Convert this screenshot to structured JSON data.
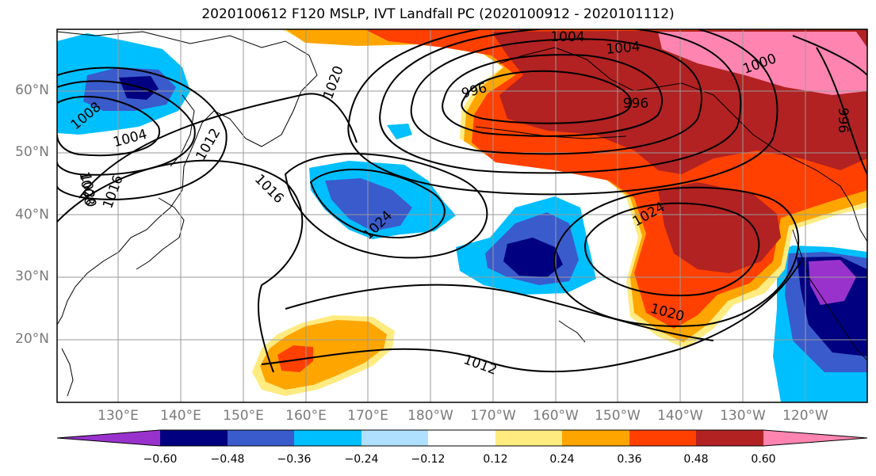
{
  "title": "2020100612 F120 MSLP, IVT Landfall PC (2020100912 - 2020101112)",
  "lat_labels": [
    "60°N",
    "50°N",
    "40°N",
    "30°N",
    "20°N"
  ],
  "lon_labels": [
    "130°E",
    "140°E",
    "150°E",
    "160°E",
    "170°E",
    "180°W",
    "170°W",
    "160°W",
    "150°W",
    "140°W",
    "130°W",
    "120°W"
  ],
  "colorbar": {
    "ticks": [
      "−0.60",
      "−0.48",
      "−0.36",
      "−0.24",
      "−0.12",
      "0.12",
      "0.24",
      "0.36",
      "0.48",
      "0.60"
    ],
    "colors": [
      "#9932cc",
      "#000080",
      "#3a5bcc",
      "#00bfff",
      "#b0e0ff",
      "#ffffff",
      "#ffeb80",
      "#ffa500",
      "#ff4000",
      "#b22222",
      "#ff85b0"
    ]
  },
  "contour_labels": [
    "1008",
    "1004",
    "1004",
    "1000",
    "996",
    "996",
    "996",
    "1008",
    "1004",
    "1012",
    "1020",
    "1020",
    "1016",
    "1016",
    "1024",
    "1024",
    "1020",
    "1012"
  ]
}
